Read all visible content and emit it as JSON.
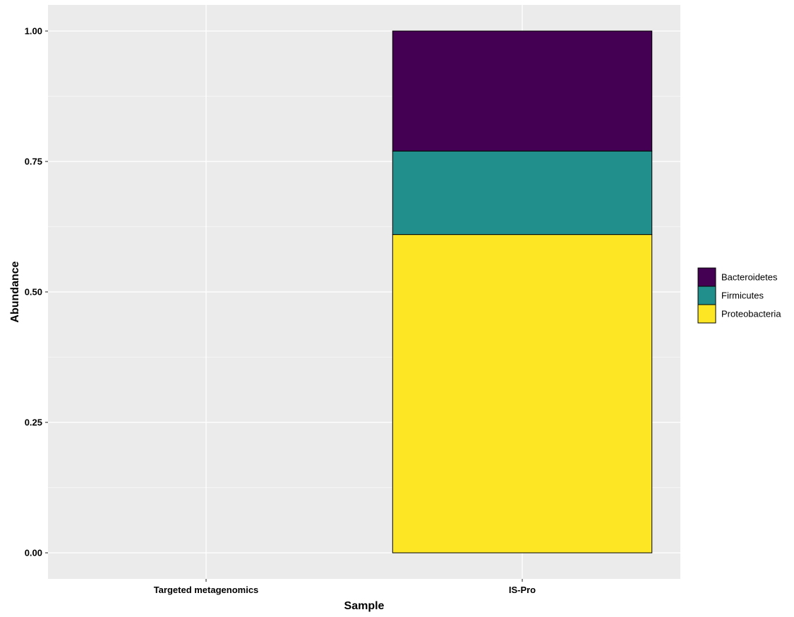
{
  "chart_data": {
    "type": "bar",
    "stacked": true,
    "categories": [
      "Targeted metagenomics",
      "IS-Pro"
    ],
    "series": [
      {
        "name": "Bacteroidetes",
        "values": [
          0,
          0.23
        ],
        "color": "#440154"
      },
      {
        "name": "Firmicutes",
        "values": [
          0,
          0.16
        ],
        "color": "#21908C"
      },
      {
        "name": "Proteobacteria",
        "values": [
          0,
          0.61
        ],
        "color": "#FDE725"
      }
    ],
    "xlabel": "Sample",
    "ylabel": "Abundance",
    "ylim": [
      -0.05,
      1.05
    ],
    "yticks": [
      "0.00",
      "0.25",
      "0.50",
      "0.75",
      "1.00"
    ],
    "grid": true,
    "legend_position": "right",
    "panel_background": "#EBEBEB"
  }
}
